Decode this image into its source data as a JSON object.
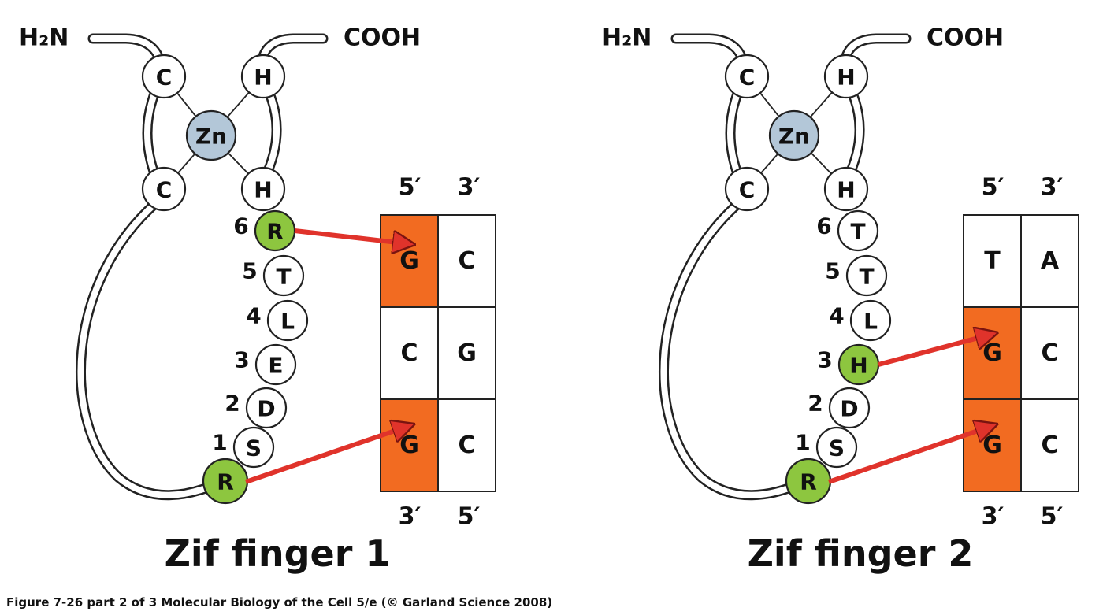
{
  "colors": {
    "zinc": "#b3c7d8",
    "interacting_residue": "#8dc63f",
    "contacted_base": "#f26b21",
    "arrow": "#e0332b",
    "outline": "#222222"
  },
  "caption": "Figure 7-26 part 2 of 3  Molecular Biology of the Cell 5/e (© Garland Science 2008)",
  "fingers": [
    {
      "title": "Zif finger 1",
      "n_terminus": "H₂N",
      "c_terminus": "COOH",
      "zinc_label": "Zn",
      "cys_left": [
        "C",
        "C"
      ],
      "his_right": [
        "H",
        "H"
      ],
      "base_residue": "R",
      "helix": [
        {
          "pos": "6",
          "aa": "R",
          "contacts": true
        },
        {
          "pos": "5",
          "aa": "T",
          "contacts": false
        },
        {
          "pos": "4",
          "aa": "L",
          "contacts": false
        },
        {
          "pos": "3",
          "aa": "E",
          "contacts": false
        },
        {
          "pos": "2",
          "aa": "D",
          "contacts": false
        },
        {
          "pos": "1",
          "aa": "S",
          "contacts": false
        }
      ],
      "strand_top_labels": [
        "5′",
        "3′"
      ],
      "strand_bottom_labels": [
        "3′",
        "5′"
      ],
      "dna_rows": [
        {
          "left": "G",
          "right": "C",
          "contacted": true
        },
        {
          "left": "C",
          "right": "G",
          "contacted": false
        },
        {
          "left": "G",
          "right": "C",
          "contacted": true
        }
      ]
    },
    {
      "title": "Zif finger 2",
      "n_terminus": "H₂N",
      "c_terminus": "COOH",
      "zinc_label": "Zn",
      "cys_left": [
        "C",
        "C"
      ],
      "his_right": [
        "H",
        "H"
      ],
      "base_residue": "R",
      "helix": [
        {
          "pos": "6",
          "aa": "T",
          "contacts": false
        },
        {
          "pos": "5",
          "aa": "T",
          "contacts": false
        },
        {
          "pos": "4",
          "aa": "L",
          "contacts": false
        },
        {
          "pos": "3",
          "aa": "H",
          "contacts": true
        },
        {
          "pos": "2",
          "aa": "D",
          "contacts": false
        },
        {
          "pos": "1",
          "aa": "S",
          "contacts": false
        }
      ],
      "strand_top_labels": [
        "5′",
        "3′"
      ],
      "strand_bottom_labels": [
        "3′",
        "5′"
      ],
      "dna_rows": [
        {
          "left": "T",
          "right": "A",
          "contacted": false
        },
        {
          "left": "G",
          "right": "C",
          "contacted": true
        },
        {
          "left": "G",
          "right": "C",
          "contacted": true
        }
      ]
    }
  ]
}
